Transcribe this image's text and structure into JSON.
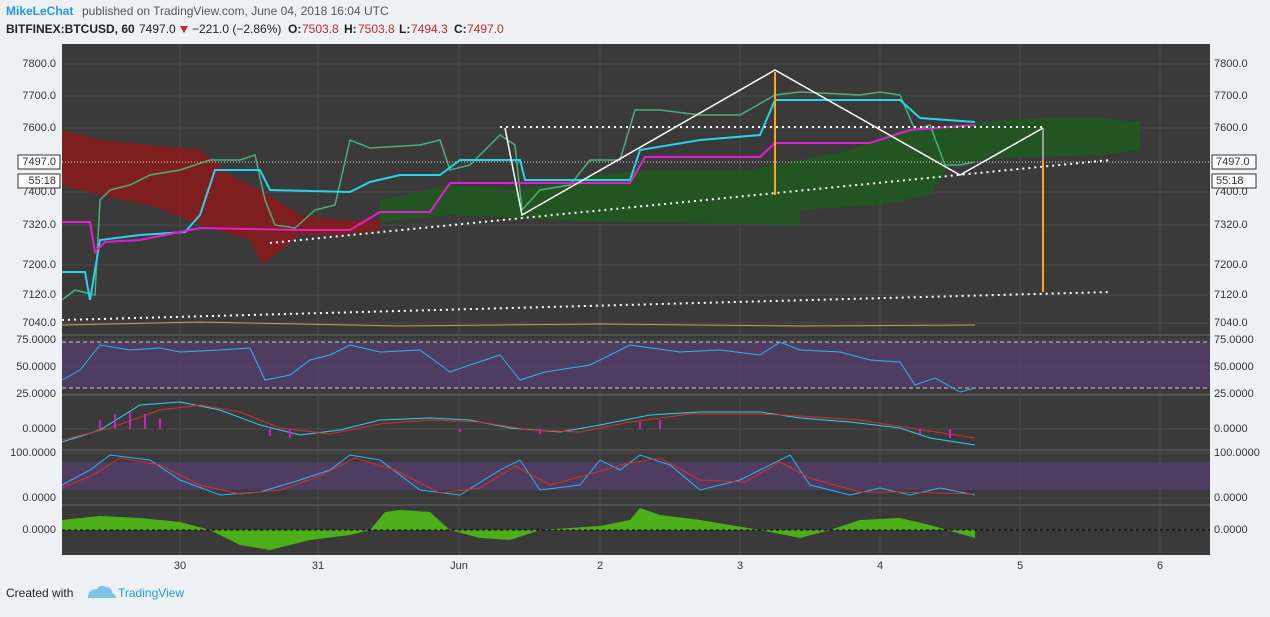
{
  "header": {
    "author": "MikeLeChat",
    "published": "published on TradingView.com, June 04, 2018 16:04 UTC",
    "symbol": "BITFINEX:BTCUSD, 60",
    "last": "7497.0",
    "change": "−221.0 (−2.86%)",
    "open_label": "O:",
    "open": "7503.8",
    "high_label": "H:",
    "high": "7503.8",
    "low_label": "L:",
    "low": "7494.3",
    "close_label": "C:",
    "close": "7497.0"
  },
  "price_axis": {
    "ticks": [
      "7800.0",
      "7700.0",
      "7600.0",
      "7400.0",
      "7320.0",
      "7200.0",
      "7120.0",
      "7040.0"
    ],
    "current": "7497.0",
    "countdown": "55:18"
  },
  "rsi_axis": [
    "75.0000",
    "50.0000",
    "25.0000"
  ],
  "macd_axis": [
    "0.0000"
  ],
  "stoch_axis": [
    "100.0000",
    "0.0000"
  ],
  "ao_axis": [
    "0.0000"
  ],
  "time_axis": [
    "30",
    "31",
    "Jun",
    "2",
    "3",
    "4",
    "5",
    "6"
  ],
  "footer": {
    "created": "Created with",
    "brand": "TradingView"
  }
}
